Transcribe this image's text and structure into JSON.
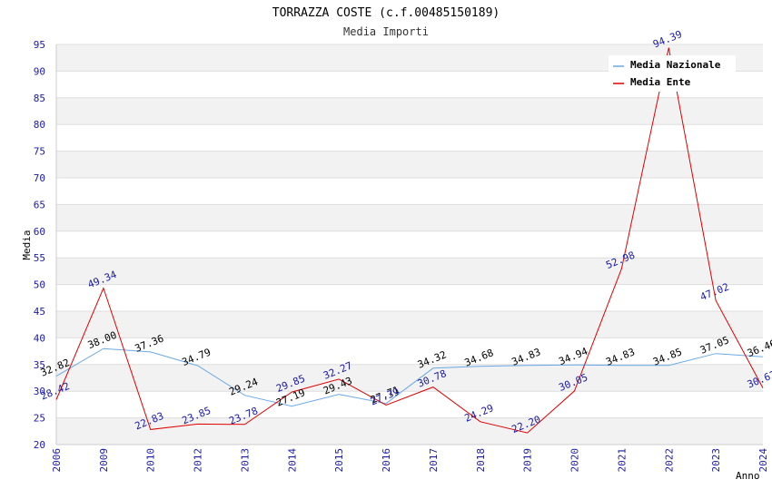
{
  "chart_data": {
    "type": "line",
    "title": "TORRAZZA COSTE (c.f.00485150189)",
    "subtitle": "Media Importi",
    "xlabel": "Anno",
    "ylabel": "Media",
    "ylim": [
      20,
      95
    ],
    "yticks": [
      20,
      25,
      30,
      35,
      40,
      45,
      50,
      55,
      60,
      65,
      70,
      75,
      80,
      85,
      90,
      95
    ],
    "categories": [
      "2006",
      "2009",
      "2010",
      "2012",
      "2013",
      "2014",
      "2015",
      "2016",
      "2017",
      "2018",
      "2019",
      "2020",
      "2021",
      "2022",
      "2023",
      "2024"
    ],
    "legend_position": "top-right",
    "grid": "horizontal-bands",
    "series": [
      {
        "name": "Media Nazionale",
        "color": "#6aa9e6",
        "values": [
          32.82,
          38.0,
          37.36,
          34.79,
          29.24,
          27.19,
          29.43,
          27.71,
          34.32,
          34.68,
          34.83,
          34.94,
          34.83,
          34.85,
          37.05,
          36.46
        ],
        "labels": [
          "32.82",
          "38.00",
          "37.36",
          "34.79",
          "29.24",
          "27.19",
          "29.43",
          "27.71",
          "34.32",
          "34.68",
          "34.83",
          "34.94",
          "34.83",
          "34.85",
          "37.05",
          "36.46"
        ]
      },
      {
        "name": "Media Ente",
        "color": "#e00000",
        "values": [
          28.42,
          49.34,
          22.83,
          23.85,
          23.78,
          29.85,
          32.27,
          27.39,
          30.78,
          24.29,
          22.2,
          30.05,
          52.98,
          94.39,
          47.02,
          30.62
        ],
        "labels": [
          "28.42",
          "49.34",
          "22.83",
          "23.85",
          "23.78",
          "29.85",
          "32.27",
          "27.39",
          "30.78",
          "24.29",
          "22.20",
          "30.05",
          "52.98",
          "94.39",
          "47.02",
          "30.62"
        ]
      }
    ]
  }
}
